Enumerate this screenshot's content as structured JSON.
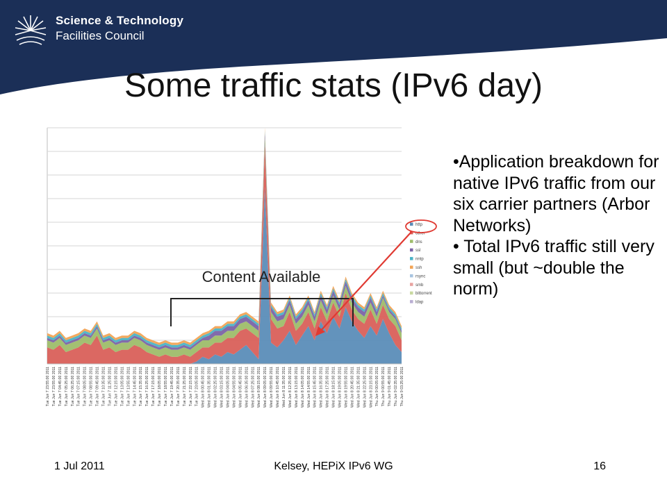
{
  "header": {
    "logo_line1": "Science & Technology",
    "logo_line2": "Facilities Council",
    "band_color": "#1b2f57"
  },
  "slide": {
    "title": "Some traffic stats (IPv6 day)"
  },
  "bullets": [
    "•Application breakdown for native IPv6 traffic from our six carrier partners (Arbor Networks)",
    "• Total IPv6 traffic still very small (but ~double the norm)"
  ],
  "footer": {
    "date": "1 Jul 2011",
    "center": "Kelsey, HEPiX IPv6 WG",
    "page": "16"
  },
  "annotation": {
    "label": "Content Available",
    "arrow_color": "#e03a32"
  },
  "chart_data": {
    "type": "area",
    "stacked": true,
    "grid": true,
    "legend_position": "right",
    "x": [
      "Tue Jun 7 23:55:00 2011",
      "Tue Jun 7 23:55:00 2011",
      "Tue Jun 7 04:45:00 2011",
      "Tue Jun 7 05:25:00 2011",
      "Tue Jun 7 06:25:00 2011",
      "Tue Jun 7 07:15:00 2011",
      "Tue Jun 7 08:05:00 2011",
      "Tue Jun 7 08:55:00 2011",
      "Tue Jun 7 09:45:00 2011",
      "Tue Jun 7 10:35:00 2011",
      "Tue Jun 7 11:25:00 2011",
      "Tue Jun 7 12:15:00 2011",
      "Tue Jun 7 13:05:00 2011",
      "Tue Jun 7 13:55:00 2011",
      "Tue Jun 7 14:45:00 2011",
      "Tue Jun 7 15:35:00 2011",
      "Tue Jun 7 16:25:00 2011",
      "Tue Jun 7 17:15:00 2011",
      "Tue Jun 7 18:05:00 2011",
      "Tue Jun 7 18:55:00 2011",
      "Tue Jun 7 19:45:00 2011",
      "Tue Jun 7 20:35:00 2011",
      "Tue Jun 7 21:25:00 2011",
      "Tue Jun 7 22:15:00 2011",
      "Tue Jun 7 23:05:00 2011",
      "Wed Jun 8 00:45:00 2011",
      "Wed Jun 8 01:35:00 2011",
      "Wed Jun 8 02:25:00 2011",
      "Wed Jun 8 03:15:00 2011",
      "Wed Jun 8 04:05:00 2011",
      "Wed Jun 8 04:55:00 2011",
      "Wed Jun 8 05:45:00 2011",
      "Wed Jun 8 06:35:00 2011",
      "Wed Jun 8 07:25:00 2011",
      "Wed Jun 8 08:15:00 2011",
      "Wed Jun 8 09:05:00 2011",
      "Wed Jun 8 09:55:00 2011",
      "Wed Jun 8 10:45:00 2011",
      "Wed Jun 8 11:35:00 2011",
      "Wed Jun 8 12:25:00 2011",
      "Wed Jun 8 13:15:00 2011",
      "Wed Jun 8 14:05:00 2011",
      "Wed Jun 8 14:55:00 2011",
      "Wed Jun 8 15:45:00 2011",
      "Wed Jun 8 16:35:00 2011",
      "Wed Jun 8 17:25:00 2011",
      "Wed Jun 8 18:15:00 2011",
      "Wed Jun 8 19:05:00 2011",
      "Wed Jun 8 19:55:00 2011",
      "Wed Jun 8 20:45:00 2011",
      "Wed Jun 8 21:35:00 2011",
      "Wed Jun 8 22:25:00 2011",
      "Wed Jun 8 23:15:00 2011",
      "Thu Jun 9 00:05:00 2011",
      "Thu Jun 9 00:55:00 2011",
      "Thu Jun 9 01:45:00 2011",
      "Thu Jun 9 02:35:00 2011",
      "Thu Jun 9 03:25:00 2011"
    ],
    "ylim": [
      0,
      100
    ],
    "series": [
      {
        "name": "http",
        "color": "#5b8db8",
        "values": [
          0,
          0,
          0,
          0,
          0,
          0,
          0,
          0,
          0,
          0,
          0,
          0,
          0,
          0,
          0,
          0,
          0,
          0,
          0,
          0,
          0,
          0,
          0,
          0,
          1,
          3,
          2,
          4,
          3,
          5,
          4,
          6,
          8,
          5,
          2,
          75,
          9,
          7,
          10,
          14,
          8,
          12,
          16,
          10,
          18,
          13,
          20,
          15,
          24,
          18,
          14,
          11,
          16,
          12,
          19,
          13,
          8,
          5
        ]
      },
      {
        "name": "other",
        "color": "#d9605a",
        "values": [
          7,
          6,
          8,
          5,
          6,
          7,
          9,
          8,
          12,
          6,
          7,
          5,
          6,
          6,
          8,
          7,
          5,
          4,
          3,
          4,
          3,
          3,
          4,
          3,
          4,
          4,
          5,
          5,
          6,
          6,
          7,
          8,
          7,
          8,
          9,
          18,
          10,
          8,
          6,
          8,
          6,
          5,
          6,
          5,
          6,
          5,
          6,
          5,
          6,
          5,
          5,
          6,
          7,
          5,
          6,
          6,
          8,
          5
        ]
      },
      {
        "name": "dns",
        "color": "#9ebd6a",
        "values": [
          3,
          3,
          3,
          3,
          3,
          3,
          3,
          3,
          3,
          3,
          3,
          3,
          3,
          3,
          3,
          3,
          3,
          3,
          3,
          3,
          3,
          3,
          3,
          3,
          3,
          3,
          3,
          3,
          3,
          3,
          3,
          3,
          3,
          3,
          3,
          3,
          3,
          3,
          3,
          3,
          3,
          3,
          3,
          3,
          3,
          3,
          3,
          3,
          3,
          3,
          3,
          3,
          3,
          3,
          3,
          3,
          3,
          3
        ]
      },
      {
        "name": "ssl",
        "color": "#7b63a6",
        "values": [
          1,
          1,
          1,
          1,
          1,
          1,
          1,
          1,
          1,
          1,
          1,
          1,
          1,
          1,
          1,
          1,
          1,
          1,
          1,
          1,
          1,
          1,
          1,
          1,
          1,
          1,
          2,
          2,
          2,
          2,
          2,
          2,
          2,
          2,
          2,
          2,
          2,
          2,
          2,
          2,
          2,
          2,
          2,
          2,
          2,
          2,
          2,
          2,
          2,
          2,
          2,
          2,
          2,
          2,
          1,
          1,
          1,
          1
        ]
      },
      {
        "name": "nntp",
        "color": "#4ab3c6",
        "values": [
          1,
          1,
          1,
          1,
          1,
          1,
          1,
          1,
          1,
          1,
          1,
          1,
          1,
          1,
          1,
          1,
          1,
          1,
          1,
          1,
          1,
          1,
          1,
          1,
          1,
          1,
          1,
          1,
          1,
          1,
          1,
          1,
          1,
          1,
          1,
          1,
          1,
          1,
          1,
          1,
          1,
          1,
          1,
          1,
          1,
          1,
          1,
          1,
          1,
          1,
          1,
          1,
          1,
          1,
          1,
          1,
          1,
          1
        ]
      },
      {
        "name": "ssh",
        "color": "#f2a456",
        "values": [
          1,
          1,
          1,
          1,
          1,
          1,
          1,
          1,
          1,
          1,
          1,
          1,
          1,
          1,
          1,
          1,
          1,
          1,
          1,
          1,
          1,
          1,
          1,
          1,
          1,
          1,
          1,
          1,
          1,
          1,
          1,
          1,
          1,
          1,
          1,
          1,
          1,
          1,
          1,
          1,
          1,
          1,
          1,
          1,
          1,
          1,
          1,
          1,
          1,
          1,
          1,
          1,
          1,
          1,
          1,
          1,
          1,
          1
        ]
      },
      {
        "name": "rsync",
        "color": "#a8c4e0",
        "values": [
          0,
          0,
          0,
          0,
          0,
          0,
          0,
          0,
          0,
          0,
          0,
          0,
          0,
          0,
          0,
          0,
          0,
          0,
          0,
          0,
          0,
          0,
          0,
          0,
          0,
          0,
          0,
          0,
          0,
          0,
          0,
          0,
          0,
          0,
          0,
          0,
          0,
          0,
          0,
          0,
          0,
          0,
          0,
          0,
          0,
          0,
          0,
          0,
          0,
          0,
          0,
          0,
          0,
          0,
          0,
          0,
          0,
          0
        ]
      },
      {
        "name": "smb",
        "color": "#e8a3a0",
        "values": [
          0,
          0,
          0,
          0,
          0,
          0,
          0,
          0,
          0,
          0,
          0,
          0,
          0,
          0,
          0,
          0,
          0,
          0,
          0,
          0,
          0,
          0,
          0,
          0,
          0,
          0,
          0,
          0,
          0,
          0,
          0,
          0,
          0,
          0,
          0,
          0,
          0,
          0,
          0,
          0,
          0,
          0,
          0,
          0,
          0,
          0,
          0,
          0,
          0,
          0,
          0,
          0,
          0,
          0,
          0,
          0,
          0,
          0
        ]
      },
      {
        "name": "bittorrent",
        "color": "#c9d9a0",
        "values": [
          0,
          0,
          0,
          0,
          0,
          0,
          0,
          0,
          0,
          0,
          0,
          0,
          0,
          0,
          0,
          0,
          0,
          0,
          0,
          0,
          0,
          0,
          0,
          0,
          0,
          0,
          0,
          0,
          0,
          0,
          0,
          0,
          0,
          0,
          0,
          0,
          0,
          0,
          0,
          0,
          0,
          0,
          0,
          0,
          0,
          0,
          0,
          0,
          0,
          0,
          0,
          0,
          0,
          0,
          0,
          0,
          0,
          0
        ]
      },
      {
        "name": "ldap",
        "color": "#b9aed2",
        "values": [
          0,
          0,
          0,
          0,
          0,
          0,
          0,
          0,
          0,
          0,
          0,
          0,
          0,
          0,
          0,
          0,
          0,
          0,
          0,
          0,
          0,
          0,
          0,
          0,
          0,
          0,
          0,
          0,
          0,
          0,
          0,
          0,
          0,
          0,
          0,
          0,
          0,
          0,
          0,
          0,
          0,
          0,
          0,
          0,
          0,
          0,
          0,
          0,
          0,
          0,
          0,
          0,
          0,
          0,
          0,
          0,
          0,
          0
        ]
      }
    ]
  }
}
